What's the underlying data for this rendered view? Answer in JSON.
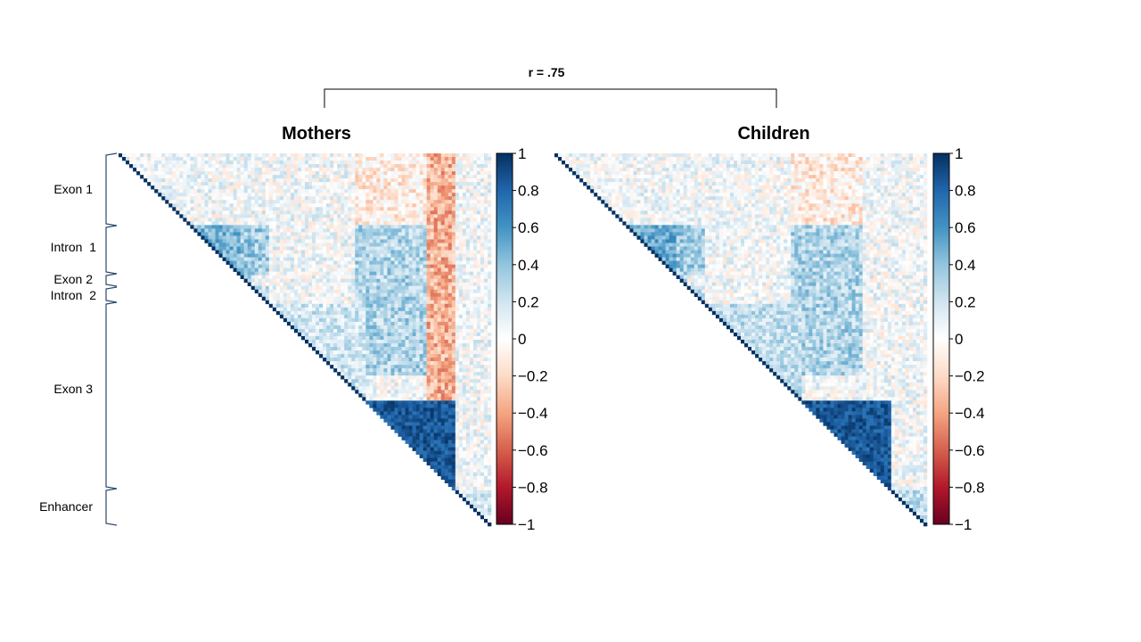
{
  "comparison": {
    "label": "r = .75"
  },
  "chart_data": [
    {
      "type": "heatmap",
      "title": "Mothers",
      "shape": "upper-triangle correlation matrix",
      "color_scale": {
        "min": -1,
        "max": 1,
        "colors": {
          "low": "#67001f",
          "mid": "#ffffff",
          "high": "#053061"
        },
        "tick_labels": [
          "1",
          "0.8",
          "0.6",
          "0.4",
          "0.2",
          "0",
          "−0.2",
          "−0.4",
          "−0.6",
          "−0.8",
          "−1"
        ]
      },
      "blocks": [
        {
          "region": "Exon 1",
          "mean_r": 0.08
        },
        {
          "region": "Intron 1",
          "mean_r": 0.45
        },
        {
          "region": "Exon 2",
          "mean_r": 0.3
        },
        {
          "region": "Intron 2",
          "mean_r": 0.25
        },
        {
          "region": "Exon 3 (upper)",
          "mean_r": 0.2
        },
        {
          "region": "Exon 3 (lower)",
          "mean_r": 0.85
        },
        {
          "region": "Enhancer",
          "mean_r": 0.2
        }
      ]
    },
    {
      "type": "heatmap",
      "title": "Children",
      "shape": "upper-triangle correlation matrix",
      "color_scale": {
        "min": -1,
        "max": 1,
        "colors": {
          "low": "#67001f",
          "mid": "#ffffff",
          "high": "#053061"
        },
        "tick_labels": [
          "1",
          "0.8",
          "0.6",
          "0.4",
          "0.2",
          "0",
          "−0.2",
          "−0.4",
          "−0.6",
          "−0.8",
          "−1"
        ]
      },
      "blocks": [
        {
          "region": "Exon 1",
          "mean_r": 0.05
        },
        {
          "region": "Intron 1",
          "mean_r": 0.5
        },
        {
          "region": "Exon 2",
          "mean_r": 0.3
        },
        {
          "region": "Intron 2",
          "mean_r": 0.25
        },
        {
          "region": "Exon 3 (upper)",
          "mean_r": 0.25
        },
        {
          "region": "Exon 3 (lower)",
          "mean_r": 0.9
        },
        {
          "region": "Enhancer",
          "mean_r": 0.25
        }
      ]
    }
  ],
  "regions": [
    {
      "name": "Exon 1",
      "label": "Exon 1"
    },
    {
      "name": "Intron 1",
      "label": "Intron  1"
    },
    {
      "name": "Exon 2",
      "label": "Exon 2"
    },
    {
      "name": "Intron 2",
      "label": "Intron  2"
    },
    {
      "name": "Exon 3",
      "label": "Exon 3"
    },
    {
      "name": "Enhancer",
      "label": "Enhancer"
    }
  ]
}
